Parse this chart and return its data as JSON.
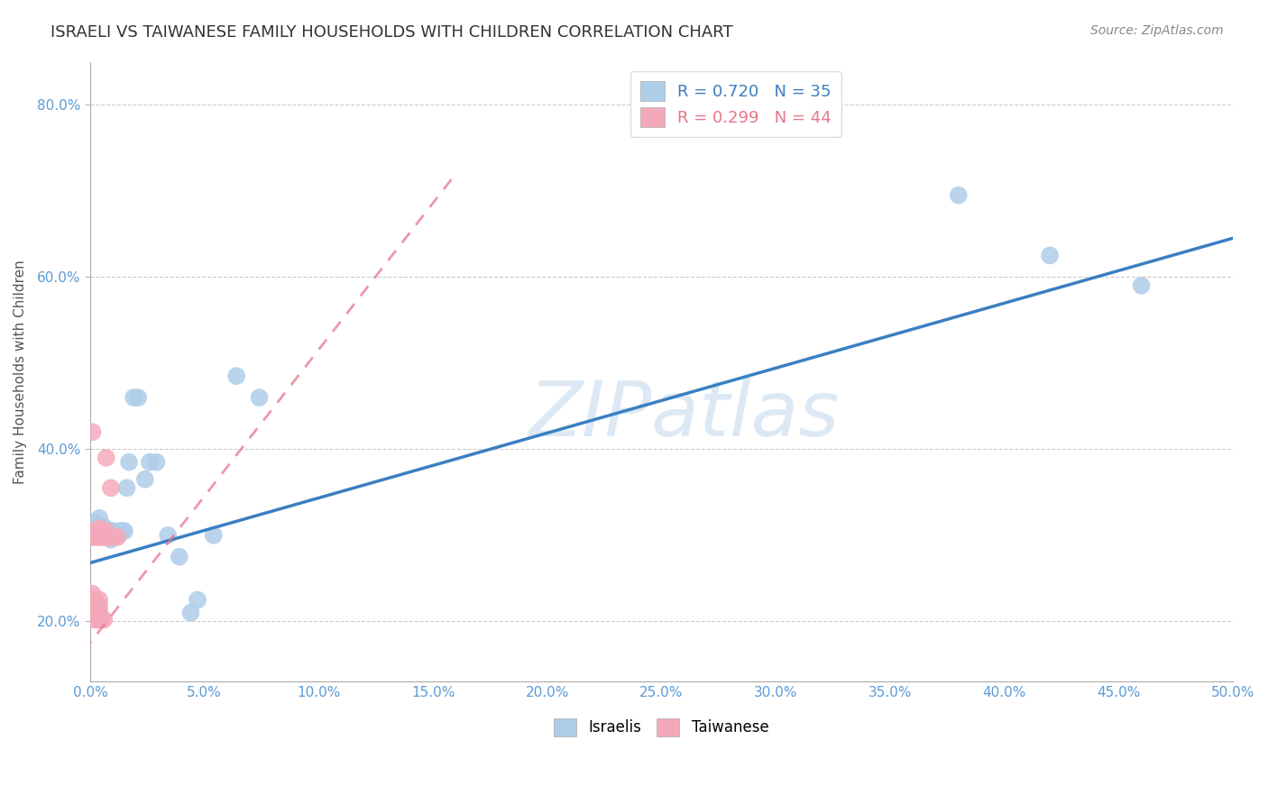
{
  "title": "ISRAELI VS TAIWANESE FAMILY HOUSEHOLDS WITH CHILDREN CORRELATION CHART",
  "source": "Source: ZipAtlas.com",
  "ylabel": "Family Households with Children",
  "xlim": [
    0.0,
    0.5
  ],
  "ylim": [
    0.13,
    0.85
  ],
  "xticks": [
    0.0,
    0.05,
    0.1,
    0.15,
    0.2,
    0.25,
    0.3,
    0.35,
    0.4,
    0.45,
    0.5
  ],
  "yticks": [
    0.2,
    0.4,
    0.6,
    0.8
  ],
  "israeli_r": 0.72,
  "israeli_n": 35,
  "taiwanese_r": 0.299,
  "taiwanese_n": 44,
  "israeli_color": "#aecde8",
  "taiwanese_color": "#f4a9bb",
  "israeli_line_color": "#3a7fc1",
  "taiwanese_line_color": "#e8748a",
  "watermark": "ZIPatlas",
  "watermark_color": "#dce9f5",
  "israeli_points_x": [
    0.002,
    0.004,
    0.004,
    0.005,
    0.006,
    0.006,
    0.007,
    0.007,
    0.008,
    0.009,
    0.009,
    0.01,
    0.01,
    0.011,
    0.012,
    0.013,
    0.014,
    0.015,
    0.016,
    0.017,
    0.019,
    0.021,
    0.024,
    0.026,
    0.029,
    0.034,
    0.039,
    0.044,
    0.047,
    0.054,
    0.064,
    0.074,
    0.38,
    0.42,
    0.46
  ],
  "israeli_points_y": [
    0.315,
    0.305,
    0.32,
    0.305,
    0.3,
    0.31,
    0.3,
    0.305,
    0.3,
    0.305,
    0.295,
    0.3,
    0.305,
    0.3,
    0.3,
    0.305,
    0.305,
    0.305,
    0.355,
    0.385,
    0.46,
    0.46,
    0.365,
    0.385,
    0.385,
    0.3,
    0.275,
    0.21,
    0.225,
    0.3,
    0.485,
    0.46,
    0.695,
    0.625,
    0.59
  ],
  "taiwanese_points_x": [
    0.001,
    0.001,
    0.001,
    0.001,
    0.001,
    0.001,
    0.001,
    0.001,
    0.001,
    0.002,
    0.002,
    0.002,
    0.002,
    0.002,
    0.002,
    0.002,
    0.003,
    0.003,
    0.003,
    0.003,
    0.003,
    0.003,
    0.004,
    0.004,
    0.004,
    0.004,
    0.004,
    0.004,
    0.004,
    0.004,
    0.005,
    0.005,
    0.005,
    0.006,
    0.006,
    0.006,
    0.007,
    0.007,
    0.007,
    0.008,
    0.009,
    0.009,
    0.01,
    0.012
  ],
  "taiwanese_points_y": [
    0.205,
    0.208,
    0.212,
    0.218,
    0.225,
    0.232,
    0.298,
    0.3,
    0.42,
    0.202,
    0.207,
    0.212,
    0.218,
    0.225,
    0.298,
    0.305,
    0.202,
    0.207,
    0.212,
    0.218,
    0.298,
    0.305,
    0.202,
    0.207,
    0.212,
    0.218,
    0.225,
    0.298,
    0.305,
    0.308,
    0.202,
    0.298,
    0.305,
    0.202,
    0.298,
    0.305,
    0.298,
    0.305,
    0.39,
    0.298,
    0.298,
    0.355,
    0.298,
    0.298
  ],
  "israeli_line_x": [
    0.0,
    0.5
  ],
  "israeli_line_y": [
    0.268,
    0.645
  ],
  "taiwanese_line_x": [
    -0.003,
    0.16
  ],
  "taiwanese_line_y": [
    0.165,
    0.72
  ]
}
